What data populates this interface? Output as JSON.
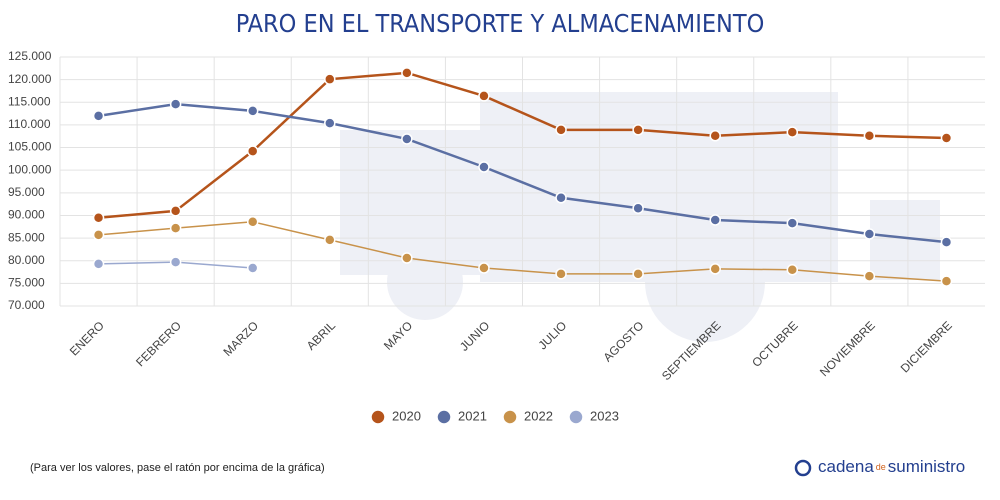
{
  "chart_data": {
    "type": "line",
    "title": "PARO EN EL TRANSPORTE Y ALMACENAMIENTO",
    "categories": [
      "ENERO",
      "FEBRERO",
      "MARZO",
      "ABRIL",
      "MAYO",
      "JUNIO",
      "JULIO",
      "AGOSTO",
      "SEPTIEMBRE",
      "OCTUBRE",
      "NOVIEMBRE",
      "DICIEMBRE"
    ],
    "series": [
      {
        "name": "2020",
        "color": "#b5541b",
        "values": [
          89500,
          91000,
          104200,
          120100,
          121500,
          116400,
          108900,
          108900,
          107600,
          108400,
          107600,
          107100
        ]
      },
      {
        "name": "2021",
        "color": "#5b6fa3",
        "values": [
          112000,
          114600,
          113100,
          110400,
          106900,
          100700,
          93900,
          91600,
          89000,
          88300,
          85900,
          84100
        ]
      },
      {
        "name": "2022",
        "color": "#c8924a",
        "values": [
          85700,
          87200,
          88600,
          84600,
          80600,
          78400,
          77100,
          77100,
          78200,
          78000,
          76600,
          75500
        ]
      },
      {
        "name": "2023",
        "color": "#9aa8cf",
        "values": [
          79300,
          79700,
          78400,
          null,
          null,
          null,
          null,
          null,
          null,
          null,
          null,
          null
        ]
      }
    ],
    "ylim": [
      70000,
      125000
    ],
    "yticks": [
      {
        "value": 70000,
        "label": "70.000"
      },
      {
        "value": 75000,
        "label": "75.000"
      },
      {
        "value": 80000,
        "label": "80.000"
      },
      {
        "value": 85000,
        "label": "85.000"
      },
      {
        "value": 90000,
        "label": "90.000"
      },
      {
        "value": 95000,
        "label": "95.000"
      },
      {
        "value": 100000,
        "label": "100.000"
      },
      {
        "value": 105000,
        "label": "105.000"
      },
      {
        "value": 110000,
        "label": "110.000"
      },
      {
        "value": 115000,
        "label": "115.000"
      },
      {
        "value": 120000,
        "label": "120.000"
      },
      {
        "value": 125000,
        "label": "125.000"
      }
    ],
    "grid": true,
    "legend": "bottom"
  },
  "footer": {
    "note": "(Para ver los valores, pase el ratón por encima de la gráfica)",
    "brand": [
      "cadena",
      "de",
      "suministro"
    ]
  }
}
